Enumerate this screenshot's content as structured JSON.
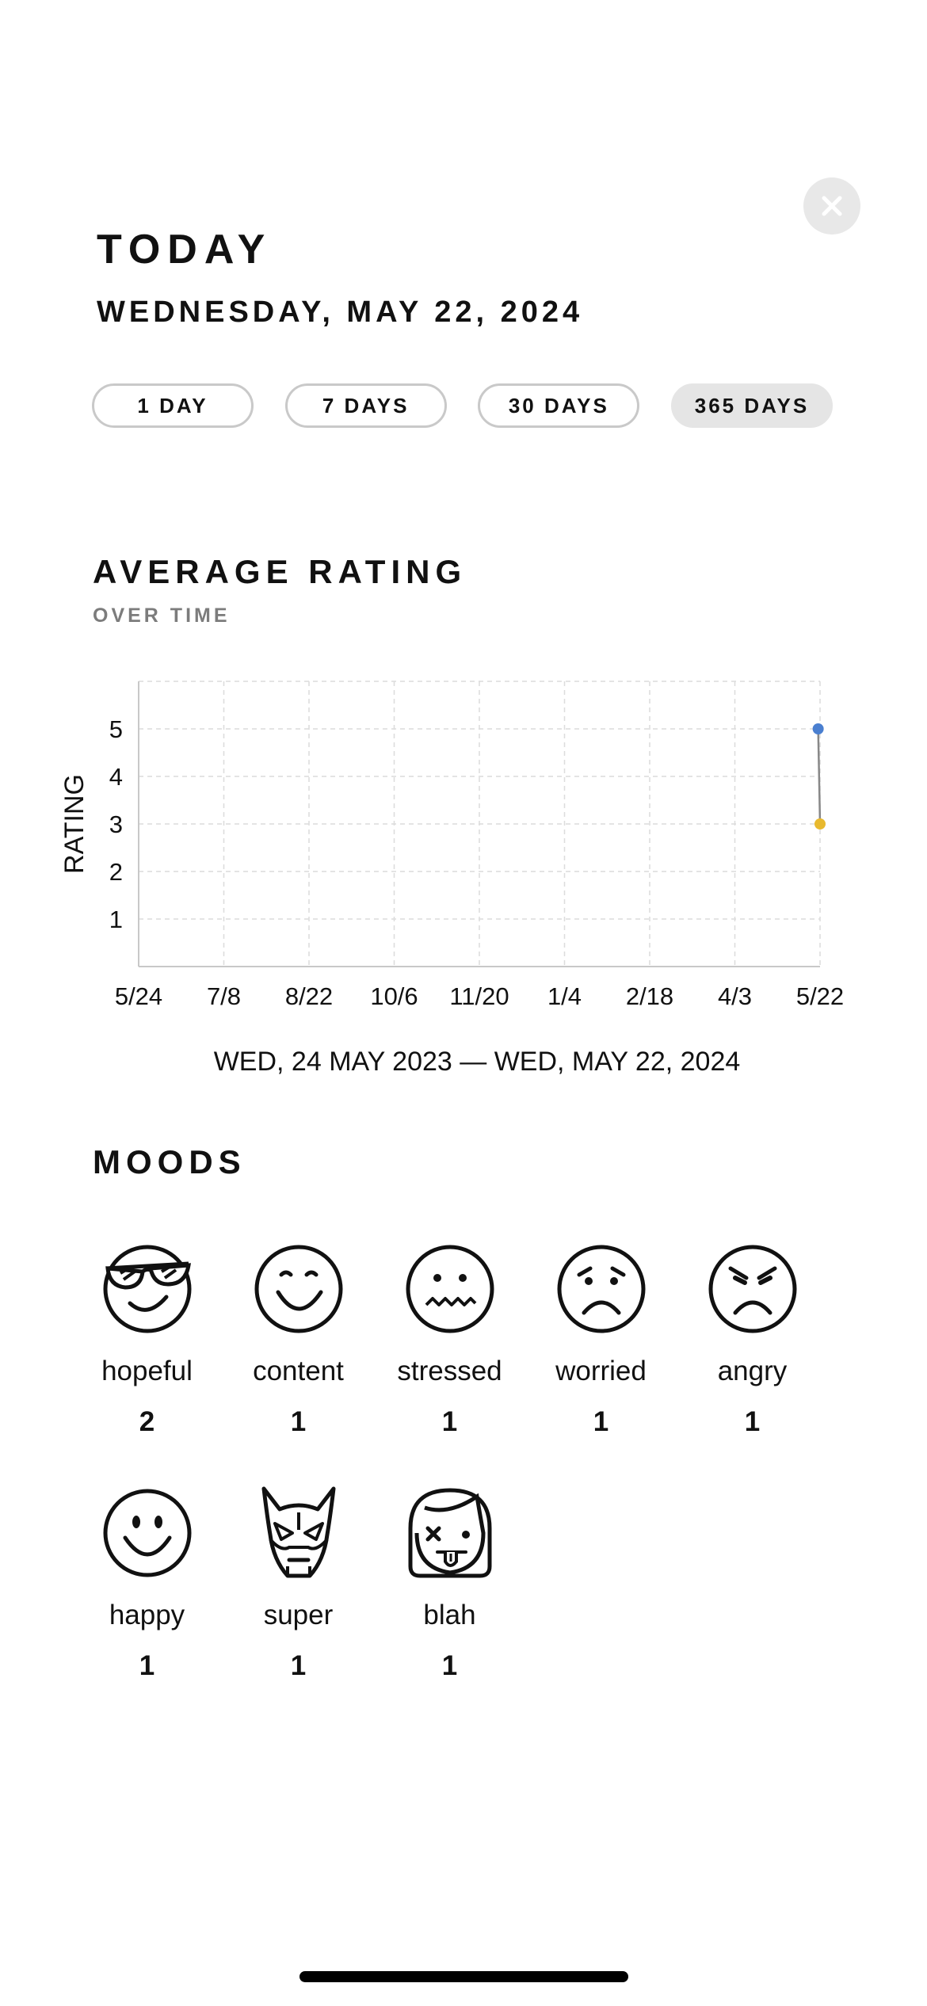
{
  "header": {
    "title": "TODAY",
    "date": "WEDNESDAY, MAY 22, 2024",
    "close_icon": "close-icon"
  },
  "ranges": [
    {
      "label": "1 DAY",
      "selected": false
    },
    {
      "label": "7 DAYS",
      "selected": false
    },
    {
      "label": "30 DAYS",
      "selected": false
    },
    {
      "label": "365 DAYS",
      "selected": true
    }
  ],
  "rating_section": {
    "title": "AVERAGE RATING",
    "subtitle": "OVER TIME",
    "range_caption": "WED, 24 MAY 2023 — WED, MAY 22, 2024"
  },
  "chart_data": {
    "type": "line",
    "ylabel": "RATING",
    "xlabel": "",
    "x_ticks": [
      "5/24",
      "7/8",
      "8/22",
      "10/6",
      "11/20",
      "1/4",
      "2/18",
      "4/3",
      "5/22"
    ],
    "y_ticks": [
      1,
      2,
      3,
      4,
      5
    ],
    "ylim": [
      0,
      6
    ],
    "grid": true,
    "points": [
      {
        "x": "5/21",
        "y": 5,
        "color": "#4a7fd0"
      },
      {
        "x": "5/22",
        "y": 3,
        "color": "#e8b92e"
      }
    ],
    "line_color": "#888888"
  },
  "moods_section": {
    "title": "MOODS",
    "items": [
      {
        "icon": "hopeful-icon",
        "label": "hopeful",
        "count": "2"
      },
      {
        "icon": "content-icon",
        "label": "content",
        "count": "1"
      },
      {
        "icon": "stressed-icon",
        "label": "stressed",
        "count": "1"
      },
      {
        "icon": "worried-icon",
        "label": "worried",
        "count": "1"
      },
      {
        "icon": "angry-icon",
        "label": "angry",
        "count": "1"
      },
      {
        "icon": "happy-icon",
        "label": "happy",
        "count": "1"
      },
      {
        "icon": "super-icon",
        "label": "super",
        "count": "1"
      },
      {
        "icon": "blah-icon",
        "label": "blah",
        "count": "1"
      }
    ]
  }
}
